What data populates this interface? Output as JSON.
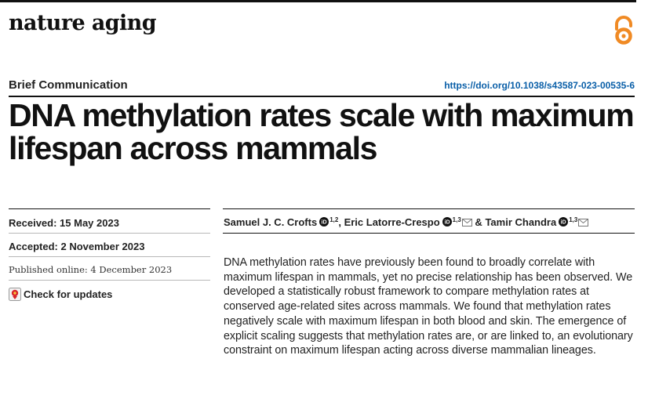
{
  "journal": {
    "name": "nature aging",
    "open_access_icon": "open-access-icon",
    "accent_color": "#f08a24"
  },
  "article": {
    "type": "Brief Communication",
    "doi": "https://doi.org/10.1038/s43587-023-00535-6",
    "title": "DNA methylation rates scale with maximum lifespan across mammals"
  },
  "dates": {
    "received_label": "Received:",
    "received_value": "15 May 2023",
    "accepted_label": "Accepted:",
    "accepted_value": "2 November 2023",
    "published_label": "Published online:",
    "published_value": "4 December 2023"
  },
  "updates": {
    "label": "Check for updates",
    "icon": "check-for-updates-icon"
  },
  "authors": [
    {
      "name": "Samuel J. C. Crofts",
      "affiliations": "1,2",
      "separator": ","
    },
    {
      "name": "Eric Latorre-Crespo",
      "affiliations": "1,3",
      "separator": "&"
    },
    {
      "name": "Tamir Chandra",
      "affiliations": "1,3",
      "separator": ""
    }
  ],
  "abstract": "DNA methylation rates have previously been found to broadly correlate with maximum lifespan in mammals, yet no precise relationship has been observed. We developed a statistically robust framework to compare methylation rates at conserved age-related sites across mammals. We found that methylation rates negatively scale with maximum lifespan in both blood and skin. The emergence of explicit scaling suggests that methylation rates are, or are linked to, an evolutionary constraint on maximum lifespan acting across diverse mammalian lineages.",
  "colors": {
    "doi_link": "#0a5fa8",
    "orcid": "#111111"
  }
}
